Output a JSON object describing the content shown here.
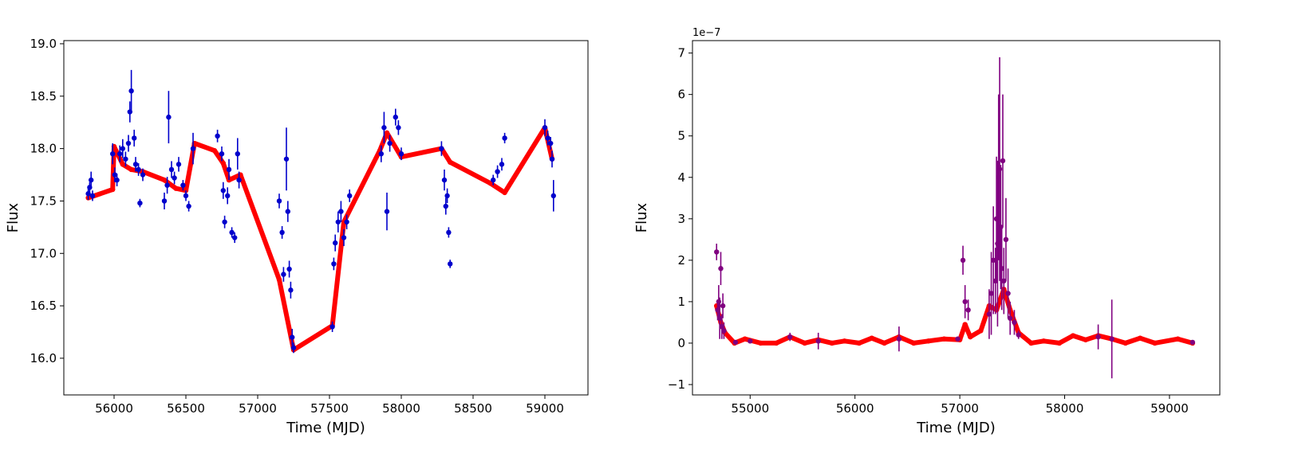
{
  "chart_data": [
    {
      "type": "scatter",
      "title": "",
      "xlabel": "Time (MJD)",
      "ylabel": "Flux",
      "xlim": [
        55650,
        59300
      ],
      "ylim": [
        15.65,
        19.03
      ],
      "xticks": [
        56000,
        56500,
        57000,
        57500,
        58000,
        58500,
        59000
      ],
      "yticks": [
        16.0,
        16.5,
        17.0,
        17.5,
        18.0,
        18.5,
        19.0
      ],
      "ytick_labels": [
        "16.0",
        "16.5",
        "17.0",
        "17.5",
        "18.0",
        "18.5",
        "19.0"
      ],
      "grid": false,
      "colors": {
        "data": "#0000cc",
        "error": "#0000cc",
        "model": "#ff0000"
      },
      "model": [
        [
          55820,
          17.53
        ],
        [
          55990,
          17.61
        ],
        [
          56000,
          18.02
        ],
        [
          56060,
          17.85
        ],
        [
          56120,
          17.8
        ],
        [
          56200,
          17.78
        ],
        [
          56350,
          17.7
        ],
        [
          56430,
          17.62
        ],
        [
          56500,
          17.6
        ],
        [
          56560,
          18.05
        ],
        [
          56700,
          17.98
        ],
        [
          56760,
          17.86
        ],
        [
          56800,
          17.7
        ],
        [
          56880,
          17.75
        ],
        [
          57150,
          16.75
        ],
        [
          57250,
          16.08
        ],
        [
          57520,
          16.31
        ],
        [
          57600,
          17.3
        ],
        [
          57850,
          17.98
        ],
        [
          57900,
          18.15
        ],
        [
          58000,
          17.92
        ],
        [
          58280,
          18.0
        ],
        [
          58340,
          17.87
        ],
        [
          58620,
          17.67
        ],
        [
          58720,
          17.58
        ],
        [
          59000,
          18.2
        ],
        [
          59050,
          17.9
        ]
      ],
      "data": [
        [
          55820,
          17.57,
          0.06
        ],
        [
          55830,
          17.63,
          0.05
        ],
        [
          55840,
          17.7,
          0.08
        ],
        [
          55850,
          17.55,
          0.05
        ],
        [
          55990,
          17.95,
          0.1
        ],
        [
          56005,
          17.75,
          0.07
        ],
        [
          56020,
          17.7,
          0.06
        ],
        [
          56040,
          17.95,
          0.08
        ],
        [
          56060,
          18.0,
          0.09
        ],
        [
          56080,
          17.9,
          0.07
        ],
        [
          56100,
          18.05,
          0.08
        ],
        [
          56110,
          18.35,
          0.1
        ],
        [
          56120,
          18.55,
          0.2
        ],
        [
          56140,
          18.1,
          0.08
        ],
        [
          56150,
          17.85,
          0.07
        ],
        [
          56170,
          17.8,
          0.06
        ],
        [
          56180,
          17.48,
          0.04
        ],
        [
          56200,
          17.75,
          0.06
        ],
        [
          56350,
          17.5,
          0.08
        ],
        [
          56370,
          17.65,
          0.08
        ],
        [
          56380,
          18.3,
          0.25
        ],
        [
          56400,
          17.8,
          0.08
        ],
        [
          56420,
          17.72,
          0.06
        ],
        [
          56450,
          17.85,
          0.07
        ],
        [
          56480,
          17.65,
          0.05
        ],
        [
          56500,
          17.55,
          0.05
        ],
        [
          56520,
          17.45,
          0.05
        ],
        [
          56550,
          18.0,
          0.15
        ],
        [
          56720,
          18.12,
          0.06
        ],
        [
          56750,
          17.95,
          0.07
        ],
        [
          56760,
          17.6,
          0.08
        ],
        [
          56770,
          17.3,
          0.06
        ],
        [
          56790,
          17.55,
          0.08
        ],
        [
          56800,
          17.8,
          0.1
        ],
        [
          56820,
          17.2,
          0.05
        ],
        [
          56840,
          17.15,
          0.05
        ],
        [
          56860,
          17.95,
          0.15
        ],
        [
          56870,
          17.7,
          0.08
        ],
        [
          57150,
          17.5,
          0.07
        ],
        [
          57170,
          17.2,
          0.06
        ],
        [
          57180,
          16.8,
          0.07
        ],
        [
          57200,
          17.9,
          0.3
        ],
        [
          57210,
          17.4,
          0.1
        ],
        [
          57220,
          16.85,
          0.08
        ],
        [
          57230,
          16.65,
          0.08
        ],
        [
          57240,
          16.2,
          0.08
        ],
        [
          57250,
          16.1,
          0.05
        ],
        [
          57520,
          16.3,
          0.05
        ],
        [
          57530,
          16.9,
          0.06
        ],
        [
          57540,
          17.1,
          0.08
        ],
        [
          57560,
          17.3,
          0.1
        ],
        [
          57580,
          17.4,
          0.1
        ],
        [
          57600,
          17.15,
          0.08
        ],
        [
          57620,
          17.3,
          0.07
        ],
        [
          57640,
          17.55,
          0.06
        ],
        [
          57860,
          17.95,
          0.08
        ],
        [
          57880,
          18.2,
          0.15
        ],
        [
          57900,
          17.4,
          0.18
        ],
        [
          57920,
          18.05,
          0.08
        ],
        [
          57960,
          18.3,
          0.08
        ],
        [
          57980,
          18.2,
          0.07
        ],
        [
          58000,
          17.95,
          0.06
        ],
        [
          58280,
          18.0,
          0.07
        ],
        [
          58300,
          17.7,
          0.1
        ],
        [
          58310,
          17.45,
          0.08
        ],
        [
          58320,
          17.55,
          0.07
        ],
        [
          58330,
          17.2,
          0.05
        ],
        [
          58340,
          16.9,
          0.04
        ],
        [
          58640,
          17.7,
          0.05
        ],
        [
          58670,
          17.78,
          0.06
        ],
        [
          58700,
          17.85,
          0.06
        ],
        [
          58720,
          18.1,
          0.05
        ],
        [
          59000,
          18.2,
          0.08
        ],
        [
          59020,
          18.1,
          0.07
        ],
        [
          59040,
          18.05,
          0.06
        ],
        [
          59050,
          17.9,
          0.08
        ],
        [
          59060,
          17.55,
          0.15
        ]
      ]
    },
    {
      "type": "scatter",
      "title": "",
      "xlabel": "Time (MJD)",
      "ylabel": "Flux",
      "offset_text": "1e−7",
      "xlim": [
        54450,
        59480
      ],
      "ylim": [
        -1.25,
        7.3
      ],
      "xticks": [
        55000,
        56000,
        57000,
        58000,
        59000
      ],
      "yticks": [
        -1,
        0,
        1,
        2,
        3,
        4,
        5,
        6,
        7
      ],
      "ytick_labels": [
        "−1",
        "0",
        "1",
        "2",
        "3",
        "4",
        "5",
        "6",
        "7"
      ],
      "grid": false,
      "colors": {
        "data": "#800080",
        "error": "#800080",
        "model": "#ff0000"
      },
      "model": [
        [
          54680,
          0.9
        ],
        [
          54720,
          0.5
        ],
        [
          54760,
          0.25
        ],
        [
          54850,
          0.0
        ],
        [
          54950,
          0.1
        ],
        [
          55100,
          0.0
        ],
        [
          55250,
          0.0
        ],
        [
          55380,
          0.15
        ],
        [
          55520,
          0.0
        ],
        [
          55650,
          0.08
        ],
        [
          55780,
          0.0
        ],
        [
          55900,
          0.05
        ],
        [
          56040,
          0.0
        ],
        [
          56160,
          0.12
        ],
        [
          56280,
          0.0
        ],
        [
          56420,
          0.15
        ],
        [
          56560,
          0.0
        ],
        [
          56700,
          0.05
        ],
        [
          56850,
          0.1
        ],
        [
          57000,
          0.08
        ],
        [
          57050,
          0.45
        ],
        [
          57100,
          0.15
        ],
        [
          57200,
          0.3
        ],
        [
          57280,
          0.9
        ],
        [
          57350,
          0.8
        ],
        [
          57420,
          1.3
        ],
        [
          57480,
          0.8
        ],
        [
          57560,
          0.25
        ],
        [
          57680,
          0.0
        ],
        [
          57800,
          0.05
        ],
        [
          57950,
          0.0
        ],
        [
          58080,
          0.18
        ],
        [
          58200,
          0.08
        ],
        [
          58320,
          0.18
        ],
        [
          58450,
          0.1
        ],
        [
          58580,
          0.0
        ],
        [
          58720,
          0.12
        ],
        [
          58860,
          0.0
        ],
        [
          59080,
          0.1
        ],
        [
          59220,
          0.0
        ]
      ],
      "data": [
        [
          54680,
          2.2,
          0.2
        ],
        [
          54690,
          0.8,
          0.25
        ],
        [
          54700,
          1.0,
          0.4
        ],
        [
          54710,
          0.6,
          0.5
        ],
        [
          54720,
          1.8,
          0.4
        ],
        [
          54730,
          0.4,
          0.3
        ],
        [
          54740,
          0.9,
          0.3
        ],
        [
          54750,
          0.3,
          0.2
        ],
        [
          54860,
          0.02,
          0.05
        ],
        [
          55000,
          0.05,
          0.05
        ],
        [
          55380,
          0.15,
          0.1
        ],
        [
          55650,
          0.05,
          0.2
        ],
        [
          56420,
          0.1,
          0.3
        ],
        [
          56980,
          0.1,
          0.05
        ],
        [
          57030,
          2.0,
          0.35
        ],
        [
          57050,
          1.0,
          0.4
        ],
        [
          57080,
          0.8,
          0.25
        ],
        [
          57280,
          0.7,
          0.6
        ],
        [
          57300,
          1.2,
          1.0
        ],
        [
          57320,
          2.0,
          1.3
        ],
        [
          57340,
          1.5,
          0.8
        ],
        [
          57350,
          3.0,
          1.5
        ],
        [
          57360,
          2.4,
          2.0
        ],
        [
          57370,
          4.0,
          2.0
        ],
        [
          57380,
          4.2,
          2.7
        ],
        [
          57390,
          2.8,
          1.5
        ],
        [
          57400,
          1.8,
          1.0
        ],
        [
          57410,
          4.4,
          1.6
        ],
        [
          57420,
          1.5,
          0.8
        ],
        [
          57440,
          2.5,
          1.0
        ],
        [
          57460,
          1.2,
          0.6
        ],
        [
          57480,
          0.6,
          0.4
        ],
        [
          57520,
          0.5,
          0.3
        ],
        [
          57560,
          0.2,
          0.1
        ],
        [
          58320,
          0.15,
          0.3
        ],
        [
          58450,
          0.1,
          0.95
        ],
        [
          59220,
          0.02,
          0.05
        ]
      ]
    }
  ]
}
